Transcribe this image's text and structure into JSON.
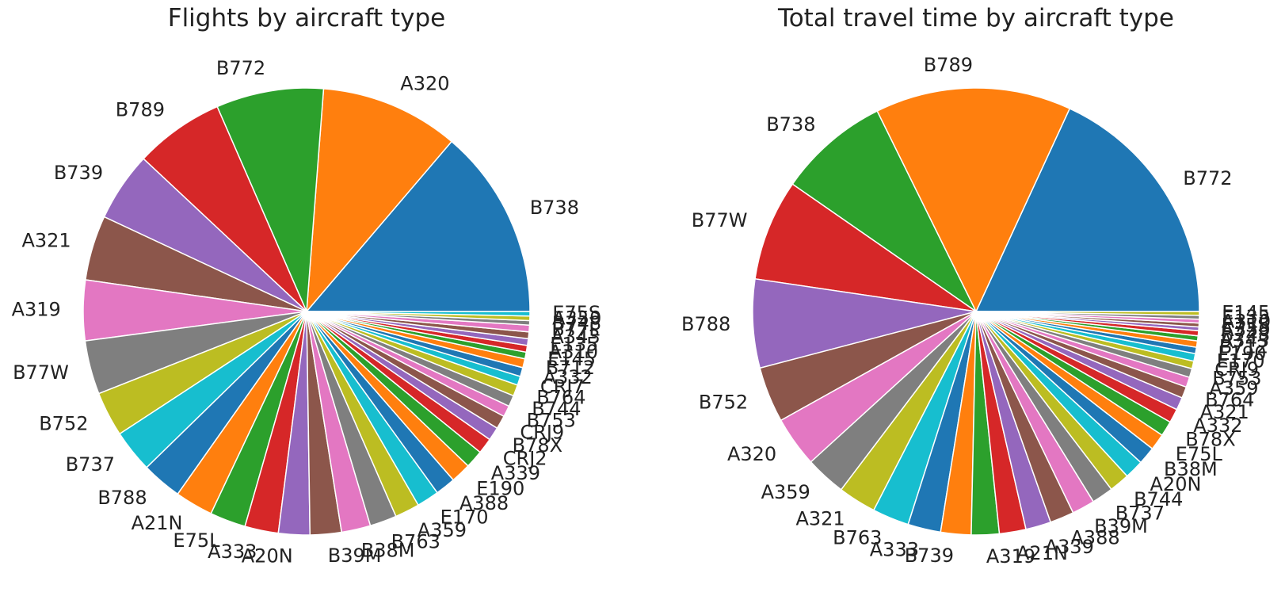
{
  "palette": [
    "#1f77b4",
    "#ff7f0e",
    "#2ca02c",
    "#d62728",
    "#9467bd",
    "#8c564b",
    "#e377c2",
    "#7f7f7f",
    "#bcbd22",
    "#17becf"
  ],
  "chart_data": [
    {
      "type": "pie",
      "title": "Flights by aircraft type",
      "categories": [
        "B738",
        "A320",
        "B772",
        "B789",
        "B739",
        "A321",
        "A319",
        "B77W",
        "B752",
        "B737",
        "B788",
        "A21N",
        "E75L",
        "A333",
        "A20N",
        "B39M",
        "B38M",
        "B763",
        "A359",
        "E170",
        "A388",
        "E190",
        "A339",
        "CRJ2",
        "B78X",
        "CRJ9",
        "B753",
        "B744",
        "B764",
        "CRJ7",
        "A332",
        "B712",
        "E145",
        "A310",
        "E135",
        "A343",
        "B77L",
        "B748",
        "A350",
        "E75S"
      ],
      "values": [
        85,
        62,
        48,
        40,
        31,
        29,
        27,
        24,
        20,
        19,
        18,
        17,
        16,
        15,
        14,
        14,
        13,
        12,
        11,
        10,
        9,
        9,
        8,
        7,
        6,
        6,
        5,
        5,
        5,
        4,
        4,
        4,
        3,
        3,
        3,
        3,
        3,
        2,
        2,
        2
      ]
    },
    {
      "type": "pie",
      "title": "Total travel time by aircraft type",
      "categories": [
        "B772",
        "B789",
        "B738",
        "B77W",
        "B788",
        "B752",
        "A320",
        "A359",
        "A321",
        "B763",
        "A333",
        "B739",
        "A319",
        "A21N",
        "A339",
        "A388",
        "B39M",
        "B737",
        "B744",
        "A20N",
        "B38M",
        "E75L",
        "B78X",
        "A332",
        "A321",
        "B764",
        "A359",
        "B753",
        "CRJ9",
        "E170",
        "E190",
        "B712",
        "A343",
        "B748",
        "A350",
        "E75S",
        "A310",
        "E135",
        "E145"
      ],
      "values": [
        198,
        155,
        88,
        80,
        70,
        44,
        40,
        32,
        30,
        29,
        26,
        24,
        22,
        21,
        20,
        19,
        18,
        17,
        16,
        15,
        14,
        13,
        12,
        11,
        10,
        9,
        8,
        7,
        6,
        6,
        5,
        5,
        4,
        4,
        3,
        3,
        3,
        3,
        3
      ]
    }
  ]
}
